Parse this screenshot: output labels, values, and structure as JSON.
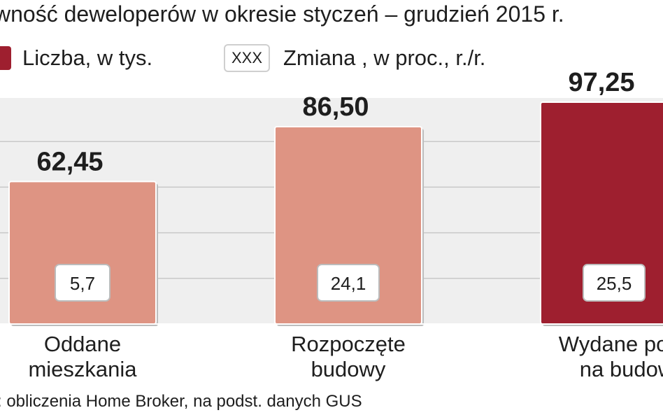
{
  "title": "wność deweloperów w okresie styczeń – grudzień 2015 r.",
  "legend": {
    "count_label": "Liczba, w tys.",
    "change_box": "XXX",
    "change_label": "Zmiana , w proc.,  r./r."
  },
  "source": ": obliczenia Home Broker, na podst. danych GUS",
  "colors": {
    "light_bar": "#de9483",
    "dark_bar": "#9e1f2f",
    "grid": "#c8c8c8",
    "plot_bg": "#efefef"
  },
  "chart_data": {
    "type": "bar",
    "title": "",
    "categories": [
      [
        "Oddane",
        "mieszkania"
      ],
      [
        "Rozpoczęte",
        "budowy"
      ],
      [
        "Wydane pozw",
        "na budow"
      ]
    ],
    "values": [
      62.45,
      86.5,
      97.25
    ],
    "value_labels": [
      "62,45",
      "86,50",
      "97,25"
    ],
    "change_percent": [
      5.7,
      24.1,
      25.5
    ],
    "change_labels": [
      "5,7",
      "24,1",
      "25,5"
    ],
    "bar_colors": [
      "light",
      "light",
      "dark"
    ],
    "ylim": [
      0,
      100
    ],
    "grid": true
  }
}
